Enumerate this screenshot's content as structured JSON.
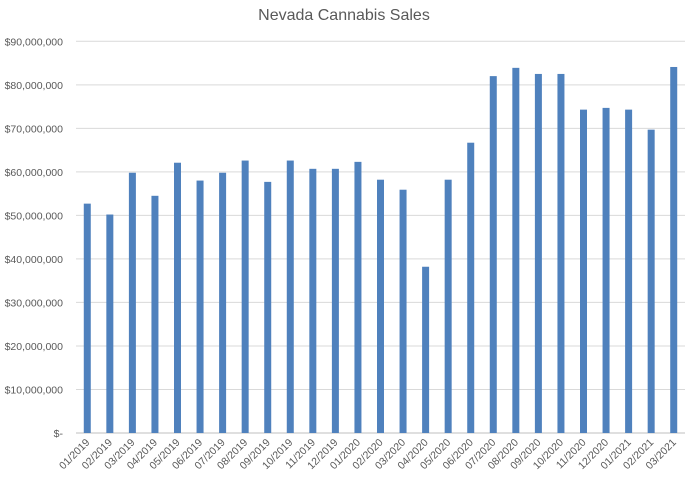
{
  "chart_data": {
    "type": "bar",
    "title": "Nevada Cannabis Sales",
    "xlabel": "",
    "ylabel": "",
    "ylim": [
      0,
      90000000
    ],
    "grid": true,
    "legend": "none",
    "bar_color": "#4F81BD",
    "yticks": [
      {
        "value": 0,
        "label": "$-"
      },
      {
        "value": 10000000,
        "label": "$10,000,000"
      },
      {
        "value": 20000000,
        "label": "$20,000,000"
      },
      {
        "value": 30000000,
        "label": "$30,000,000"
      },
      {
        "value": 40000000,
        "label": "$40,000,000"
      },
      {
        "value": 50000000,
        "label": "$50,000,000"
      },
      {
        "value": 60000000,
        "label": "$60,000,000"
      },
      {
        "value": 70000000,
        "label": "$70,000,000"
      },
      {
        "value": 80000000,
        "label": "$80,000,000"
      },
      {
        "value": 90000000,
        "label": "$90,000,000"
      }
    ],
    "categories": [
      "01/2019",
      "02/2019",
      "03/2019",
      "04/2019",
      "05/2019",
      "06/2019",
      "07/2019",
      "08/2019",
      "09/2019",
      "10/2019",
      "11/2019",
      "12/2019",
      "01/2020",
      "02/2020",
      "03/2020",
      "04/2020",
      "05/2020",
      "06/2020",
      "07/2020",
      "08/2020",
      "09/2020",
      "10/2020",
      "11/2020",
      "12/2020",
      "01/2021",
      "02/2021",
      "03/2021"
    ],
    "values": [
      52700000,
      50200000,
      59800000,
      54500000,
      62100000,
      58000000,
      59800000,
      62600000,
      57700000,
      62600000,
      60700000,
      60700000,
      62300000,
      58200000,
      55900000,
      38200000,
      58200000,
      66700000,
      82000000,
      83900000,
      82500000,
      82500000,
      74300000,
      74700000,
      74300000,
      69700000,
      84100000
    ]
  }
}
